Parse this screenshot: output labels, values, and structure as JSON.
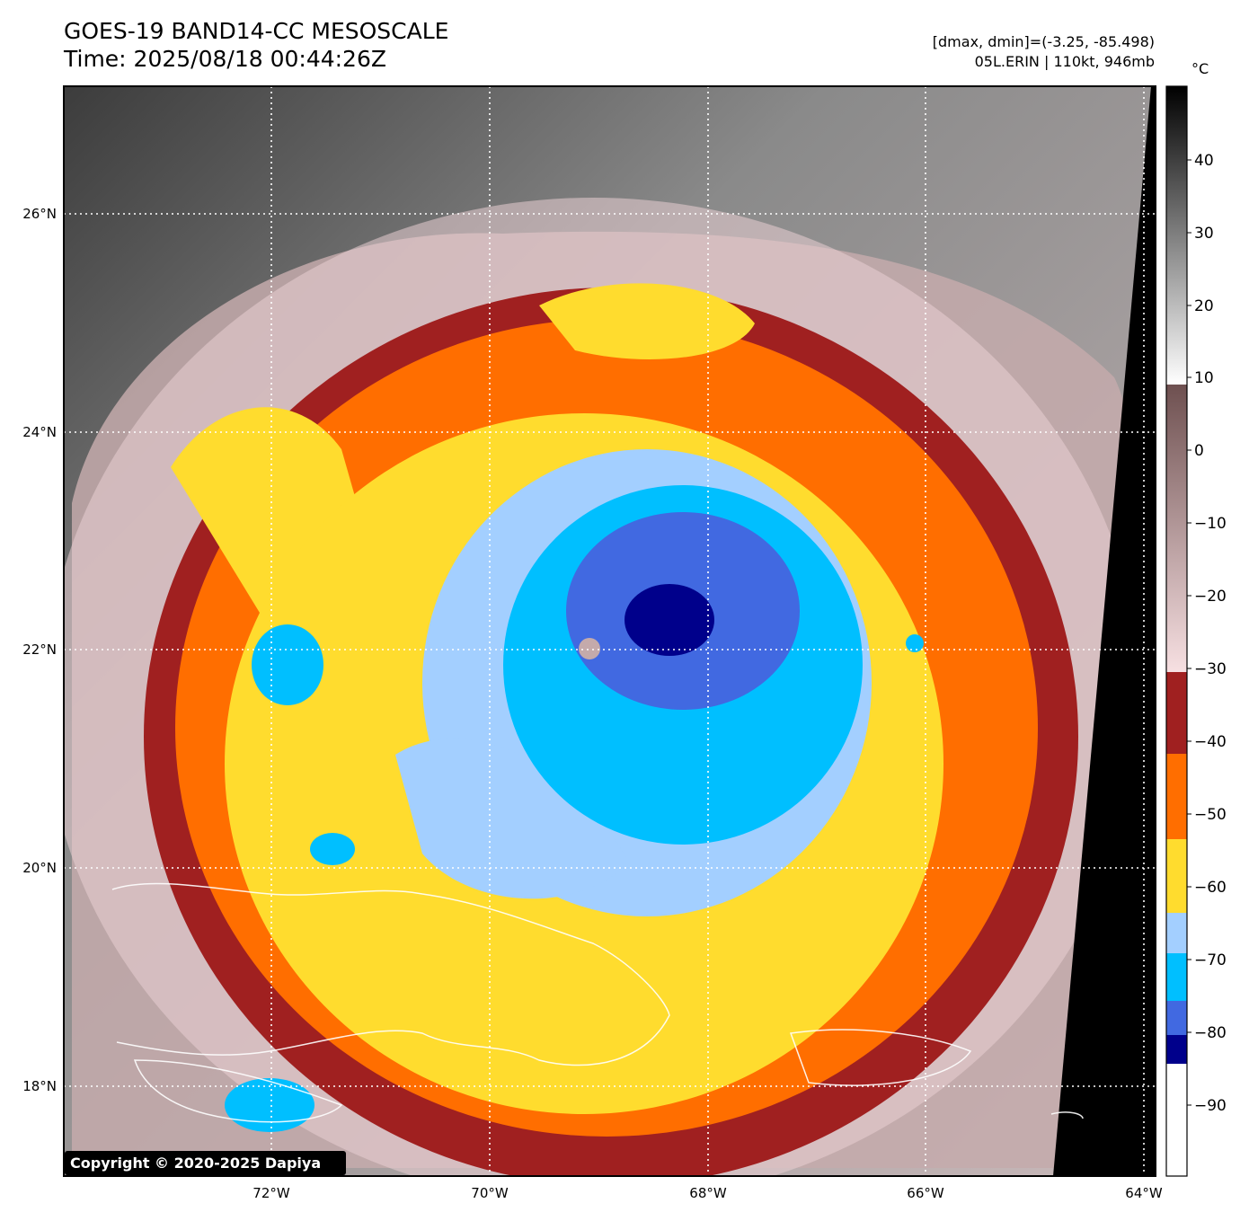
{
  "header": {
    "title_line1": "GOES-19 BAND14-CC MESOSCALE",
    "title_line2": "Time: 2025/08/18 00:44:26Z",
    "range_text": "[dmax, dmin]=(-3.25, -85.498)",
    "storm_text": "05L.ERIN | 110kt, 946mb"
  },
  "map": {
    "lat_labels": [
      "26°N",
      "24°N",
      "22°N",
      "20°N",
      "18°N"
    ],
    "lon_labels": [
      "72°W",
      "70°W",
      "68°W",
      "66°W",
      "64°W"
    ],
    "copyright": "Copyright © 2020-2025 Dapiya"
  },
  "colorbar": {
    "unit": "°C",
    "ticks": [
      "40",
      "30",
      "20",
      "10",
      "0",
      "−10",
      "−20",
      "−30",
      "−40",
      "−50",
      "−60",
      "−70",
      "−80",
      "−90"
    ],
    "colors": {
      "dark_blue": "#00008b",
      "royal_blue": "#4169e1",
      "deep_sky": "#00bfff",
      "light_blue": "#a3cfff",
      "gold": "#ffdc2e",
      "orange": "#ff6e00",
      "dark_red": "#a02020",
      "pink": "#f1d2d4"
    }
  }
}
